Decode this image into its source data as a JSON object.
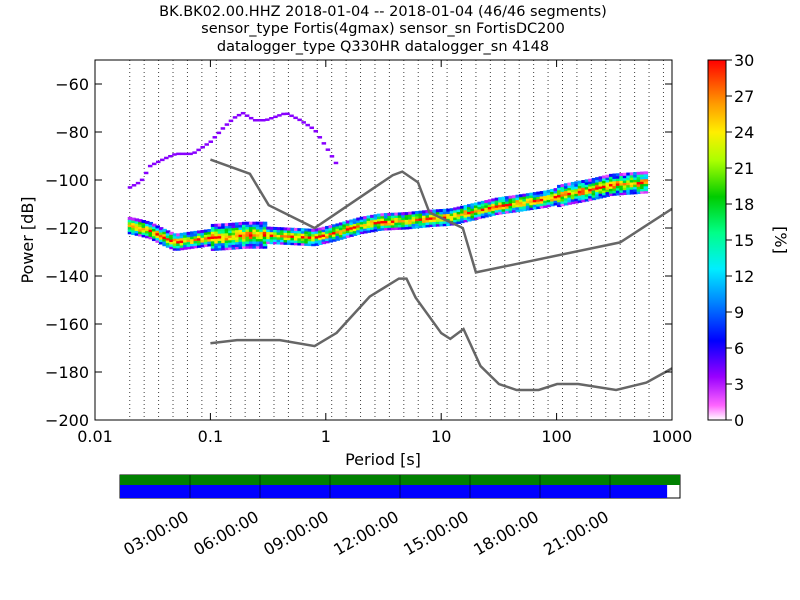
{
  "header": {
    "title_lines": [
      "BK.BK02.00.HHZ   2018-01-04 -- 2018-01-04  (46/46 segments)",
      "sensor_type Fortis(4gmax) sensor_sn FortisDC200",
      "datalogger_type Q330HR datalogger_sn 4148"
    ]
  },
  "chart_data": [
    {
      "type": "heatmap",
      "title": "BK.BK02.00.HHZ   2018-01-04 -- 2018-01-04  (46/46 segments)",
      "xlabel": "Period [s]",
      "ylabel": "Power [dB]",
      "xscale": "log",
      "xlim": [
        0.01,
        1000
      ],
      "ylim": [
        -200,
        -50
      ],
      "x_ticks": [
        {
          "value": 0.01,
          "label": "0.01"
        },
        {
          "value": 0.1,
          "label": "0.1"
        },
        {
          "value": 1,
          "label": "1"
        },
        {
          "value": 10,
          "label": "10"
        },
        {
          "value": 100,
          "label": "100"
        },
        {
          "value": 1000,
          "label": "1000"
        }
      ],
      "y_ticks": [
        {
          "value": -60,
          "label": "−60"
        },
        {
          "value": -80,
          "label": "−80"
        },
        {
          "value": -100,
          "label": "−100"
        },
        {
          "value": -120,
          "label": "−120"
        },
        {
          "value": -140,
          "label": "−140"
        },
        {
          "value": -160,
          "label": "−160"
        },
        {
          "value": -180,
          "label": "−180"
        },
        {
          "value": -200,
          "label": "−200"
        }
      ],
      "grid": "dotted vertical period bins",
      "colorbar": {
        "label": "[%]",
        "range": [
          0,
          30
        ],
        "ticks": [
          {
            "value": 0,
            "label": "0"
          },
          {
            "value": 3,
            "label": "3"
          },
          {
            "value": 6,
            "label": "6"
          },
          {
            "value": 9,
            "label": "9"
          },
          {
            "value": 12,
            "label": "12"
          },
          {
            "value": 15,
            "label": "15"
          },
          {
            "value": 18,
            "label": "18"
          },
          {
            "value": 21,
            "label": "21"
          },
          {
            "value": 24,
            "label": "24"
          },
          {
            "value": 27,
            "label": "27"
          },
          {
            "value": 30,
            "label": "30"
          }
        ]
      },
      "noise_models": {
        "new_high_noise_model": {
          "x": [
            0.1,
            0.22,
            0.32,
            0.8,
            3.8,
            4.6,
            6.3,
            7.9,
            15.4,
            20,
            354.8,
            1000
          ],
          "y": [
            -91.5,
            -97.4,
            -110.5,
            -120,
            -98,
            -96.5,
            -101,
            -113.5,
            -120,
            -138.5,
            -126,
            -112
          ]
        },
        "new_low_noise_model": {
          "x": [
            0.1,
            0.17,
            0.4,
            0.8,
            1.24,
            2.4,
            4.3,
            5.0,
            6.0,
            10,
            12,
            15.6,
            21.9,
            31.6,
            45,
            70,
            101,
            154,
            328,
            600,
            1000
          ],
          "y": [
            -168,
            -166.7,
            -166.7,
            -169.2,
            -163.7,
            -148.6,
            -141.1,
            -141.1,
            -149,
            -163.8,
            -166.2,
            -162.1,
            -177.5,
            -185,
            -187.5,
            -187.5,
            -185,
            -185,
            -187.5,
            -184.4,
            -178.5
          ]
        }
      },
      "mode_curve": {
        "x": [
          0.02,
          0.025,
          0.03,
          0.04,
          0.05,
          0.07,
          0.1,
          0.15,
          0.2,
          0.3,
          0.5,
          0.8,
          1.2,
          2,
          3,
          5,
          8,
          12,
          20,
          30,
          50,
          80,
          120,
          200,
          300,
          600
        ],
        "y": [
          -119,
          -120,
          -121,
          -124,
          -126,
          -125,
          -124,
          -123.5,
          -123,
          -123,
          -123.5,
          -124,
          -122,
          -119,
          -117.5,
          -117,
          -116,
          -115.5,
          -113,
          -111,
          -109.5,
          -108,
          -106,
          -104,
          -102,
          -101
        ]
      },
      "outlier_trace": {
        "x": [
          0.02,
          0.025,
          0.03,
          0.04,
          0.05,
          0.07,
          0.1,
          0.13,
          0.16,
          0.19,
          0.24,
          0.3,
          0.45,
          0.6,
          0.8,
          1.0,
          1.3
        ],
        "y": [
          -103,
          -100.5,
          -94,
          -91,
          -89,
          -89,
          -84,
          -78,
          -74,
          -72,
          -75,
          -75,
          -72,
          -75,
          -79,
          -86,
          -95
        ]
      }
    },
    {
      "type": "timeline",
      "x_ticks": [
        "03:00:00",
        "06:00:00",
        "09:00:00",
        "12:00:00",
        "15:00:00",
        "18:00:00",
        "21:00:00"
      ],
      "rows": [
        {
          "color": "#008000",
          "coverage": [
            0,
            1
          ]
        },
        {
          "color": "#0000ff",
          "coverage": [
            0,
            0.977
          ]
        }
      ]
    }
  ]
}
